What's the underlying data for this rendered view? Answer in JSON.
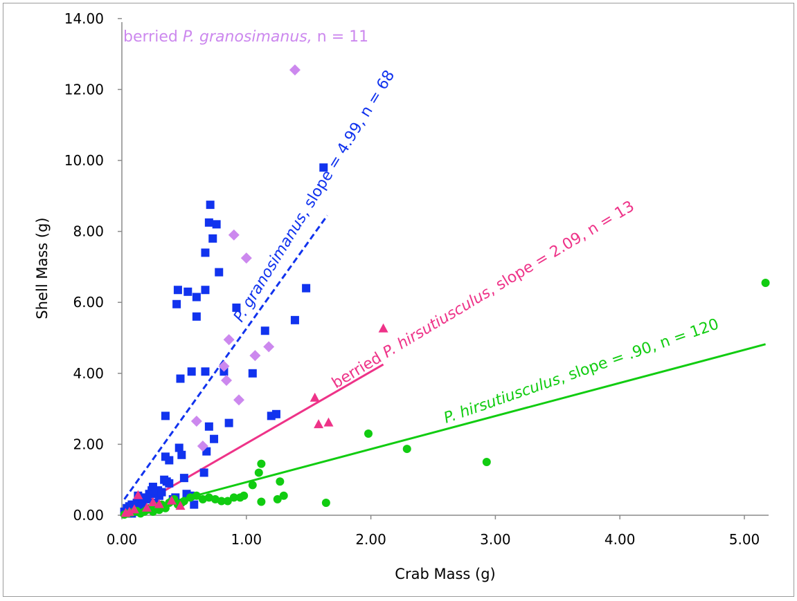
{
  "chart_data": {
    "type": "scatter",
    "xlabel": "Crab Mass (g)",
    "ylabel": "Shell Mass (g)",
    "xlim": [
      0,
      5.2
    ],
    "ylim": [
      0,
      14
    ],
    "x_ticks": [
      "0.00",
      "1.00",
      "2.00",
      "3.00",
      "4.00",
      "5.00"
    ],
    "y_ticks": [
      "0.00",
      "2.00",
      "4.00",
      "6.00",
      "8.00",
      "10.00",
      "12.00",
      "14.00"
    ],
    "grid": false,
    "series": [
      {
        "name": "P. granosimanus",
        "marker": "square",
        "color": "#1133ee",
        "points": [
          [
            0.02,
            0.1
          ],
          [
            0.04,
            0.2
          ],
          [
            0.05,
            0.15
          ],
          [
            0.06,
            0.25
          ],
          [
            0.08,
            0.3
          ],
          [
            0.1,
            0.2
          ],
          [
            0.12,
            0.35
          ],
          [
            0.13,
            0.55
          ],
          [
            0.15,
            0.3
          ],
          [
            0.17,
            0.4
          ],
          [
            0.2,
            0.45
          ],
          [
            0.22,
            0.6
          ],
          [
            0.24,
            0.7
          ],
          [
            0.25,
            0.8
          ],
          [
            0.28,
            0.6
          ],
          [
            0.3,
            0.55
          ],
          [
            0.34,
            1.0
          ],
          [
            0.36,
            0.95
          ],
          [
            0.38,
            0.9
          ],
          [
            0.35,
            1.65
          ],
          [
            0.38,
            1.55
          ],
          [
            0.35,
            2.8
          ],
          [
            0.46,
            1.9
          ],
          [
            0.48,
            1.7
          ],
          [
            0.5,
            1.05
          ],
          [
            0.52,
            0.6
          ],
          [
            0.47,
            3.85
          ],
          [
            0.56,
            4.05
          ],
          [
            0.67,
            4.05
          ],
          [
            0.68,
            1.8
          ],
          [
            0.66,
            1.2
          ],
          [
            0.7,
            2.5
          ],
          [
            0.74,
            2.15
          ],
          [
            0.44,
            5.95
          ],
          [
            0.45,
            6.35
          ],
          [
            0.53,
            6.3
          ],
          [
            0.6,
            6.15
          ],
          [
            0.6,
            5.6
          ],
          [
            0.67,
            6.35
          ],
          [
            0.67,
            7.4
          ],
          [
            0.7,
            8.25
          ],
          [
            0.71,
            8.75
          ],
          [
            0.73,
            7.8
          ],
          [
            0.76,
            8.2
          ],
          [
            0.78,
            6.85
          ],
          [
            0.82,
            4.05
          ],
          [
            0.86,
            2.6
          ],
          [
            0.92,
            5.85
          ],
          [
            1.05,
            4.0
          ],
          [
            1.15,
            5.2
          ],
          [
            1.2,
            2.8
          ],
          [
            1.24,
            2.85
          ],
          [
            1.39,
            5.5
          ],
          [
            1.48,
            6.4
          ],
          [
            1.62,
            9.8
          ],
          [
            0.08,
            0.05
          ],
          [
            0.1,
            0.1
          ],
          [
            0.16,
            0.25
          ],
          [
            0.19,
            0.5
          ],
          [
            0.26,
            0.35
          ],
          [
            0.29,
            0.7
          ],
          [
            0.32,
            0.65
          ],
          [
            0.27,
            0.25
          ],
          [
            0.41,
            0.45
          ],
          [
            0.43,
            0.5
          ],
          [
            0.55,
            0.55
          ],
          [
            0.58,
            0.3
          ],
          [
            0.05,
            0.05
          ]
        ]
      },
      {
        "name": "berried P. granosimanus",
        "marker": "diamond",
        "color": "#cc88ee",
        "points": [
          [
            0.6,
            2.65
          ],
          [
            0.65,
            1.95
          ],
          [
            0.82,
            4.2
          ],
          [
            0.84,
            3.8
          ],
          [
            0.86,
            4.95
          ],
          [
            0.9,
            7.9
          ],
          [
            0.94,
            3.25
          ],
          [
            1.0,
            7.25
          ],
          [
            1.07,
            4.5
          ],
          [
            1.18,
            4.75
          ],
          [
            1.39,
            12.55
          ]
        ]
      },
      {
        "name": "P. hirsutiusculus",
        "marker": "circle",
        "color": "#11cc11",
        "points": [
          [
            0.02,
            0.02
          ],
          [
            0.05,
            0.05
          ],
          [
            0.08,
            0.08
          ],
          [
            0.1,
            0.1
          ],
          [
            0.12,
            0.12
          ],
          [
            0.15,
            0.05
          ],
          [
            0.18,
            0.1
          ],
          [
            0.2,
            0.15
          ],
          [
            0.22,
            0.2
          ],
          [
            0.25,
            0.1
          ],
          [
            0.28,
            0.25
          ],
          [
            0.3,
            0.15
          ],
          [
            0.32,
            0.3
          ],
          [
            0.35,
            0.2
          ],
          [
            0.38,
            0.35
          ],
          [
            0.4,
            0.4
          ],
          [
            0.42,
            0.45
          ],
          [
            0.45,
            0.3
          ],
          [
            0.48,
            0.35
          ],
          [
            0.5,
            0.4
          ],
          [
            0.55,
            0.5
          ],
          [
            0.6,
            0.55
          ],
          [
            0.65,
            0.45
          ],
          [
            0.7,
            0.5
          ],
          [
            0.75,
            0.45
          ],
          [
            0.8,
            0.4
          ],
          [
            0.85,
            0.4
          ],
          [
            0.9,
            0.5
          ],
          [
            0.95,
            0.5
          ],
          [
            0.98,
            0.55
          ],
          [
            1.05,
            0.85
          ],
          [
            1.1,
            1.2
          ],
          [
            1.12,
            1.45
          ],
          [
            1.12,
            0.38
          ],
          [
            1.25,
            0.45
          ],
          [
            1.27,
            0.95
          ],
          [
            1.3,
            0.55
          ],
          [
            1.64,
            0.35
          ],
          [
            1.98,
            2.3
          ],
          [
            2.29,
            1.87
          ],
          [
            2.93,
            1.5
          ],
          [
            5.17,
            6.55
          ]
        ]
      },
      {
        "name": "berried P. hirsutiusculus",
        "marker": "triangle",
        "color": "#ee3388",
        "points": [
          [
            0.03,
            0.05
          ],
          [
            0.06,
            0.08
          ],
          [
            0.1,
            0.15
          ],
          [
            0.13,
            0.55
          ],
          [
            0.2,
            0.2
          ],
          [
            0.3,
            0.3
          ],
          [
            0.4,
            0.4
          ],
          [
            0.47,
            0.25
          ],
          [
            1.55,
            3.3
          ],
          [
            1.58,
            2.55
          ],
          [
            1.66,
            2.6
          ],
          [
            2.1,
            5.25
          ],
          [
            0.25,
            0.35
          ]
        ]
      }
    ],
    "trendlines": [
      {
        "series": "P. granosimanus",
        "style": "dashed",
        "color": "#1133ee",
        "from": [
          0.02,
          0.45
        ],
        "to": [
          1.65,
          8.45
        ]
      },
      {
        "series": "berried P. hirsutiusculus",
        "style": "solid",
        "color": "#ee3388",
        "from": [
          0.0,
          0.0
        ],
        "to": [
          2.1,
          4.25
        ]
      },
      {
        "series": "P. hirsutiusculus",
        "style": "solid",
        "color": "#11cc11",
        "from": [
          0.0,
          0.0
        ],
        "to": [
          5.17,
          4.82
        ]
      }
    ],
    "annotations": [
      {
        "text_before": "berried ",
        "text_italic": "P. granosimanus,",
        "text_after": " n = 11",
        "color": "#cc88ee"
      },
      {
        "text_italic": "P. granosimanus",
        "text_after": ", slope = 4.99, n = 68",
        "color": "#1133ee"
      },
      {
        "text_before": "berried ",
        "text_italic": "P. hirsutiusculus",
        "text_after": ", slope = 2.09, n = 13",
        "color": "#ee3388"
      },
      {
        "text_italic": "P. hirsutiusculus",
        "text_after": ", slope = .90, n = 120",
        "color": "#11cc11"
      }
    ]
  }
}
